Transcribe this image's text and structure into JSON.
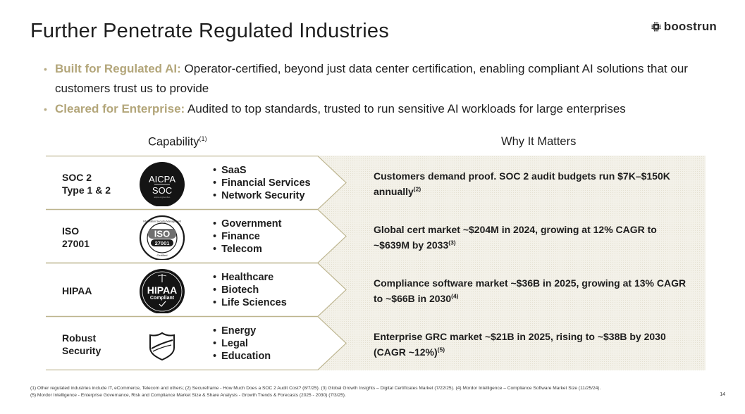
{
  "title": "Further Penetrate Regulated Industries",
  "logo": {
    "text": "boostrun",
    "icon": "chip-icon"
  },
  "bullets": [
    {
      "lead": "Built for Regulated AI:",
      "text": " Operator-certified, beyond just data center certification, enabling compliant AI solutions that our customers trust us to provide"
    },
    {
      "lead": "Cleared for Enterprise:",
      "text": " Audited to top standards, trusted to run sensitive AI workloads for large enterprises"
    }
  ],
  "headers": {
    "capability": "Capability",
    "capability_note": "(1)",
    "why": "Why It Matters"
  },
  "rows": [
    {
      "label_line1": "SOC 2",
      "label_line2": "Type 1 & 2",
      "badge": {
        "icon": "aicpa-soc-badge-icon",
        "line1": "AICPA",
        "line2": "SOC",
        "line3": "aicpa.org/soc4so"
      },
      "items": [
        "SaaS",
        "Financial Services",
        "Network Security"
      ],
      "why": "Customers demand proof. SOC 2 audit budgets run $7K–$150K annually",
      "note": "(2)"
    },
    {
      "label_line1": "ISO",
      "label_line2": "27001",
      "badge": {
        "icon": "iso-27001-badge-icon",
        "line1": "ISO",
        "line2": "27001",
        "line3": "Information Security Management",
        "line4": "Certified"
      },
      "items": [
        "Government",
        "Finance",
        "Telecom"
      ],
      "why": "Global cert market ~$204M in 2024, growing at 12% CAGR to ~$639M by 2033",
      "note": "(3)"
    },
    {
      "label_line1": "HIPAA",
      "label_line2": "",
      "badge": {
        "icon": "hipaa-compliant-badge-icon",
        "line1": "HIPAA",
        "line2": "Compliant"
      },
      "items": [
        "Healthcare",
        "Biotech",
        "Life Sciences"
      ],
      "why": "Compliance software market ~$36B in 2025, growing at 13% CAGR to ~$66B in 2030",
      "note": "(4)"
    },
    {
      "label_line1": "Robust",
      "label_line2": "Security",
      "badge": {
        "icon": "shield-icon"
      },
      "items": [
        "Energy",
        "Legal",
        "Education"
      ],
      "why": "Enterprise GRC market ~$21B in 2025, rising to ~$38B by 2030 (CAGR ~12%)",
      "note": "(5)"
    }
  ],
  "footnote_line1": "(1) Other regulated industries include IT, eCommerce, Telecom and others; (2) Secureframe - How Much Does a SOC 2 Audit Cost? (8/7/25). (3) Global Growth Insights – Digital Certificates Market (7/22/25). (4) Mordor Intelligence – Compliance Software Market Size (11/25/24).",
  "footnote_line2": "(5) Mordor Intelligence - Enterprise Governance, Risk and Compliance Market Size & Share Analysis - Growth Trends & Forecasts (2025 - 2030) (7/3/25).",
  "page_number": "14",
  "colors": {
    "accent": "#b3a67a",
    "line": "#bdb58f",
    "why_bg": "#f3f1e9"
  }
}
